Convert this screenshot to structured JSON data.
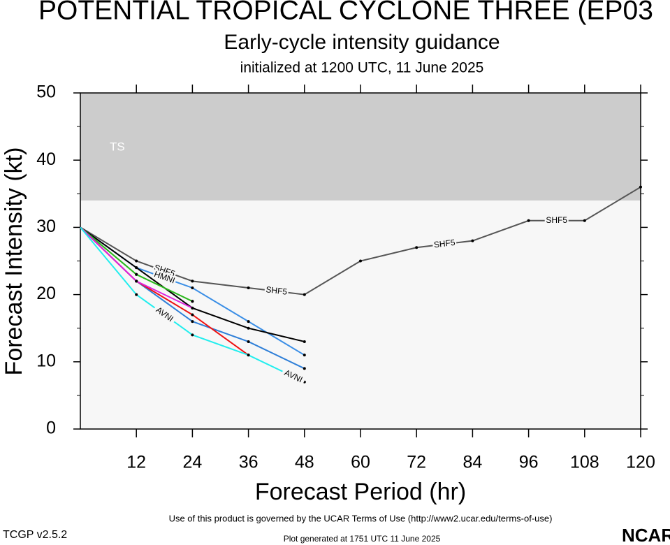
{
  "chart_data": {
    "type": "line",
    "title": "POTENTIAL TROPICAL CYCLONE THREE (EP03",
    "subtitle": "Early-cycle intensity guidance",
    "initialized": "initialized at 1200 UTC, 11 June 2025",
    "xlabel": "Forecast Period (hr)",
    "ylabel": "Forecast Intensity (kt)",
    "xlim": [
      0,
      120
    ],
    "xticks": [
      12,
      24,
      36,
      48,
      60,
      72,
      84,
      96,
      108,
      120
    ],
    "ylim": [
      0,
      50
    ],
    "yticks": [
      0,
      10,
      20,
      30,
      40,
      50
    ],
    "bands": [
      {
        "label": "TS",
        "from": 34,
        "to": 50,
        "color": "#cccccc"
      }
    ],
    "series": [
      {
        "name": "SHF5",
        "color": "#555555",
        "x": [
          0,
          12,
          24,
          36,
          48,
          60,
          72,
          84,
          96,
          108,
          120
        ],
        "values": [
          30,
          25,
          22,
          21,
          20,
          25,
          27,
          28,
          31,
          31,
          36
        ]
      },
      {
        "name": "HMNI",
        "color": "#3a8ee6",
        "x": [
          0,
          12,
          24,
          36,
          48
        ],
        "values": [
          30,
          24,
          21,
          16,
          11
        ]
      },
      {
        "color": "#2f7fd8",
        "x": [
          0,
          12,
          24,
          36,
          48
        ],
        "values": [
          30,
          22,
          16,
          13,
          9
        ]
      },
      {
        "color": "#000000",
        "x": [
          0,
          12,
          24,
          36,
          48
        ],
        "values": [
          30,
          24,
          18,
          15,
          13
        ]
      },
      {
        "color": "#ee1111",
        "x": [
          0,
          12,
          24,
          36
        ],
        "values": [
          30,
          22,
          17,
          11
        ]
      },
      {
        "color": "#f0a020",
        "x": [
          0,
          12,
          24
        ],
        "values": [
          30,
          23,
          19
        ]
      },
      {
        "color": "#22bb22",
        "x": [
          0,
          12,
          24
        ],
        "values": [
          30,
          23,
          19
        ]
      },
      {
        "color": "#dd22dd",
        "x": [
          0,
          12,
          24
        ],
        "values": [
          30,
          22,
          18
        ]
      },
      {
        "name": "AVNI",
        "color": "#22eeee",
        "x": [
          0,
          12,
          24,
          36,
          48
        ],
        "values": [
          30,
          20,
          14,
          11,
          7
        ]
      }
    ],
    "footer_terms": "Use of this product is governed by the UCAR Terms of Use (http://www2.ucar.edu/terms-of-use)",
    "footer_version": "TCGP v2.5.2",
    "footer_generated": "Plot generated at 1751 UTC   11 June 2025",
    "logo": "NCAR"
  }
}
